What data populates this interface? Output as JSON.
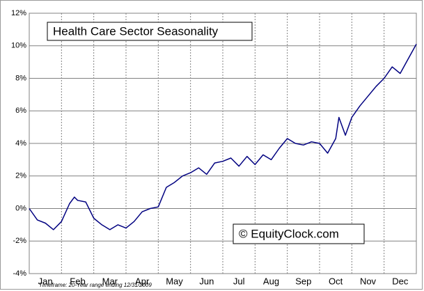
{
  "chart_data": {
    "type": "line",
    "title": "Health Care Sector Seasonality",
    "watermark": "© EquityClock.com",
    "footnote": "Timeframe: 20-Year range ending 12/31/2009",
    "xlim": [
      0,
      12
    ],
    "xticks": [
      {
        "value": 0.5,
        "label": "Jan"
      },
      {
        "value": 1.5,
        "label": "Feb"
      },
      {
        "value": 2.5,
        "label": "Mar"
      },
      {
        "value": 3.5,
        "label": "Apr"
      },
      {
        "value": 4.5,
        "label": "May"
      },
      {
        "value": 5.5,
        "label": "Jun"
      },
      {
        "value": 6.5,
        "label": "Jul"
      },
      {
        "value": 7.5,
        "label": "Aug"
      },
      {
        "value": 8.5,
        "label": "Sep"
      },
      {
        "value": 9.5,
        "label": "Oct"
      },
      {
        "value": 10.5,
        "label": "Nov"
      },
      {
        "value": 11.5,
        "label": "Dec"
      }
    ],
    "ylim": [
      -4,
      12
    ],
    "yticks": [
      {
        "value": -4,
        "label": "-4%"
      },
      {
        "value": -2,
        "label": "-2%"
      },
      {
        "value": 0,
        "label": "0%"
      },
      {
        "value": 2,
        "label": "2%"
      },
      {
        "value": 4,
        "label": "4%"
      },
      {
        "value": 6,
        "label": "6%"
      },
      {
        "value": 8,
        "label": "8%"
      },
      {
        "value": 10,
        "label": "10%"
      },
      {
        "value": 12,
        "label": "12%"
      }
    ],
    "grid": true,
    "series": [
      {
        "color": "#000080",
        "x": [
          0,
          0.25,
          0.5,
          0.75,
          1.0,
          1.25,
          1.4,
          1.5,
          1.75,
          2.0,
          2.25,
          2.5,
          2.75,
          3.0,
          3.25,
          3.5,
          3.75,
          4.0,
          4.25,
          4.5,
          4.75,
          5.0,
          5.25,
          5.5,
          5.75,
          6.0,
          6.25,
          6.5,
          6.75,
          7.0,
          7.25,
          7.5,
          7.75,
          8.0,
          8.25,
          8.5,
          8.75,
          9.0,
          9.25,
          9.5,
          9.6,
          9.8,
          10.0,
          10.25,
          10.5,
          10.75,
          11.0,
          11.25,
          11.5,
          11.75,
          12.0
        ],
        "values": [
          0,
          -0.7,
          -0.9,
          -1.3,
          -0.8,
          0.3,
          0.7,
          0.5,
          0.4,
          -0.6,
          -1.0,
          -1.3,
          -1.0,
          -1.2,
          -0.8,
          -0.2,
          0.0,
          0.1,
          1.3,
          1.6,
          2.0,
          2.2,
          2.5,
          2.1,
          2.8,
          2.9,
          3.1,
          2.6,
          3.2,
          2.7,
          3.3,
          3.0,
          3.7,
          4.3,
          4.0,
          3.9,
          4.1,
          4.0,
          3.4,
          4.3,
          5.6,
          4.5,
          5.6,
          6.3,
          6.9,
          7.5,
          8.0,
          8.7,
          8.3,
          9.2,
          10.1
        ]
      }
    ]
  }
}
